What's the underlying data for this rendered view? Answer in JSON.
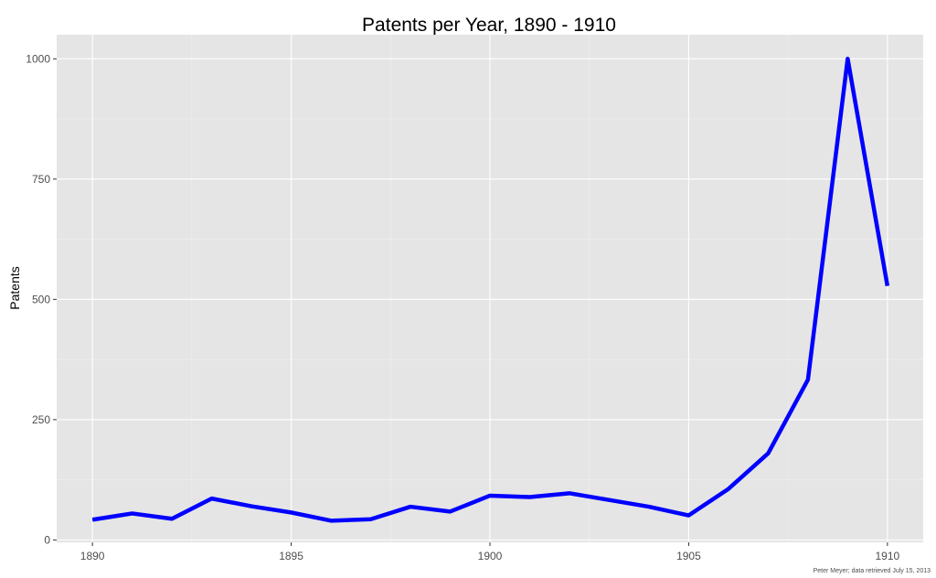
{
  "chart_data": {
    "type": "line",
    "title": "Patents per Year,  1890 - 1910",
    "xlabel": "",
    "ylabel": "Patents",
    "caption": "Peter Meyer; data retrieved July 15, 2013",
    "xlim": [
      1889.1,
      1910.9
    ],
    "ylim": [
      -5,
      1050
    ],
    "x_ticks": [
      1890,
      1895,
      1900,
      1905,
      1910
    ],
    "y_ticks": [
      0,
      250,
      500,
      750,
      1000
    ],
    "grid": true,
    "panel_color": "#e5e5e5",
    "grid_color": "#ffffff",
    "series": [
      {
        "color": "#0000ff",
        "x": [
          1890,
          1891,
          1892,
          1893,
          1894,
          1895,
          1896,
          1897,
          1898,
          1899,
          1900,
          1901,
          1902,
          1903,
          1904,
          1905,
          1906,
          1907,
          1908,
          1909,
          1910
        ],
        "values": [
          42,
          55,
          44,
          86,
          70,
          57,
          40,
          43,
          69,
          59,
          92,
          89,
          97,
          83,
          69,
          51,
          106,
          180,
          333,
          1000,
          528
        ]
      }
    ]
  }
}
